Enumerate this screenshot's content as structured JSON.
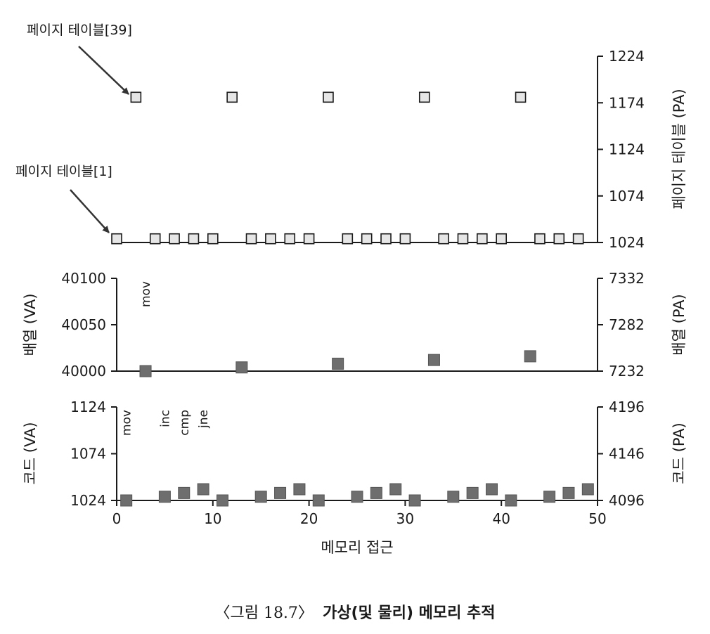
{
  "chart_data": [
    {
      "type": "scatter",
      "title": "",
      "xlim": [
        0,
        50
      ],
      "y_right_label": "페이지 테이블 (PA)",
      "y_right_ticks": [
        "1024",
        "1074",
        "1124",
        "1174",
        "1224"
      ],
      "y_right_lim": [
        1024,
        1224
      ],
      "annotations": [
        "페이지 테이블[39]",
        "페이지 테이블[1]"
      ],
      "marker": "hollow-square",
      "series": [
        {
          "x": [
            2,
            12,
            22,
            32,
            42
          ],
          "y": [
            1180,
            1180,
            1180,
            1180,
            1180
          ]
        },
        {
          "x": [
            0,
            4,
            6,
            8,
            10,
            14,
            16,
            18,
            20,
            24,
            26,
            28,
            30,
            34,
            36,
            38,
            40,
            44,
            46,
            48
          ],
          "y": [
            1028,
            1028,
            1028,
            1028,
            1028,
            1028,
            1028,
            1028,
            1028,
            1028,
            1028,
            1028,
            1028,
            1028,
            1028,
            1028,
            1028,
            1028,
            1028,
            1028
          ]
        }
      ]
    },
    {
      "type": "scatter",
      "title": "",
      "xlim": [
        0,
        50
      ],
      "y_left_label": "배열 (VA)",
      "y_left_ticks": [
        "40000",
        "40050",
        "40100"
      ],
      "y_left_lim": [
        40000,
        40100
      ],
      "y_right_label": "배열 (PA)",
      "y_right_ticks": [
        "7232",
        "7282",
        "7332"
      ],
      "y_right_lim": [
        7232,
        7332
      ],
      "instruction_labels": [
        {
          "text": "mov",
          "x": 3
        }
      ],
      "marker": "filled-square",
      "series": [
        {
          "x": [
            3,
            13,
            23,
            33,
            43
          ],
          "y": [
            40000,
            40004,
            40008,
            40012,
            40016
          ]
        }
      ]
    },
    {
      "type": "scatter",
      "title": "",
      "xlabel": "메모리 접근",
      "xlim": [
        0,
        50
      ],
      "x_ticks": [
        "0",
        "10",
        "20",
        "30",
        "40",
        "50"
      ],
      "y_left_label": "코드 (VA)",
      "y_left_ticks": [
        "1024",
        "1074",
        "1124"
      ],
      "y_left_lim": [
        1024,
        1124
      ],
      "y_right_label": "코드 (PA)",
      "y_right_ticks": [
        "4096",
        "4146",
        "4196"
      ],
      "y_right_lim": [
        4096,
        4196
      ],
      "instruction_labels": [
        {
          "text": "mov",
          "x": 1
        },
        {
          "text": "inc",
          "x": 5
        },
        {
          "text": "cmp",
          "x": 7
        },
        {
          "text": "jne",
          "x": 9
        }
      ],
      "marker": "filled-square",
      "series": [
        {
          "x": [
            1,
            5,
            7,
            9,
            11,
            15,
            17,
            19,
            21,
            25,
            27,
            29,
            31,
            35,
            37,
            39,
            41,
            45,
            47,
            49
          ],
          "y": [
            1024,
            1028,
            1032,
            1036,
            1024,
            1028,
            1032,
            1036,
            1024,
            1028,
            1032,
            1036,
            1024,
            1028,
            1032,
            1036,
            1024,
            1028,
            1032,
            1036
          ]
        }
      ]
    }
  ],
  "caption": {
    "prefix": "〈그림 18.7〉",
    "title": "가상(및 물리) 메모리 추적"
  },
  "colors": {
    "hollow_fill": "#e6e6e6",
    "filled": "#6e6e6e",
    "stroke": "#1a1a1a"
  }
}
